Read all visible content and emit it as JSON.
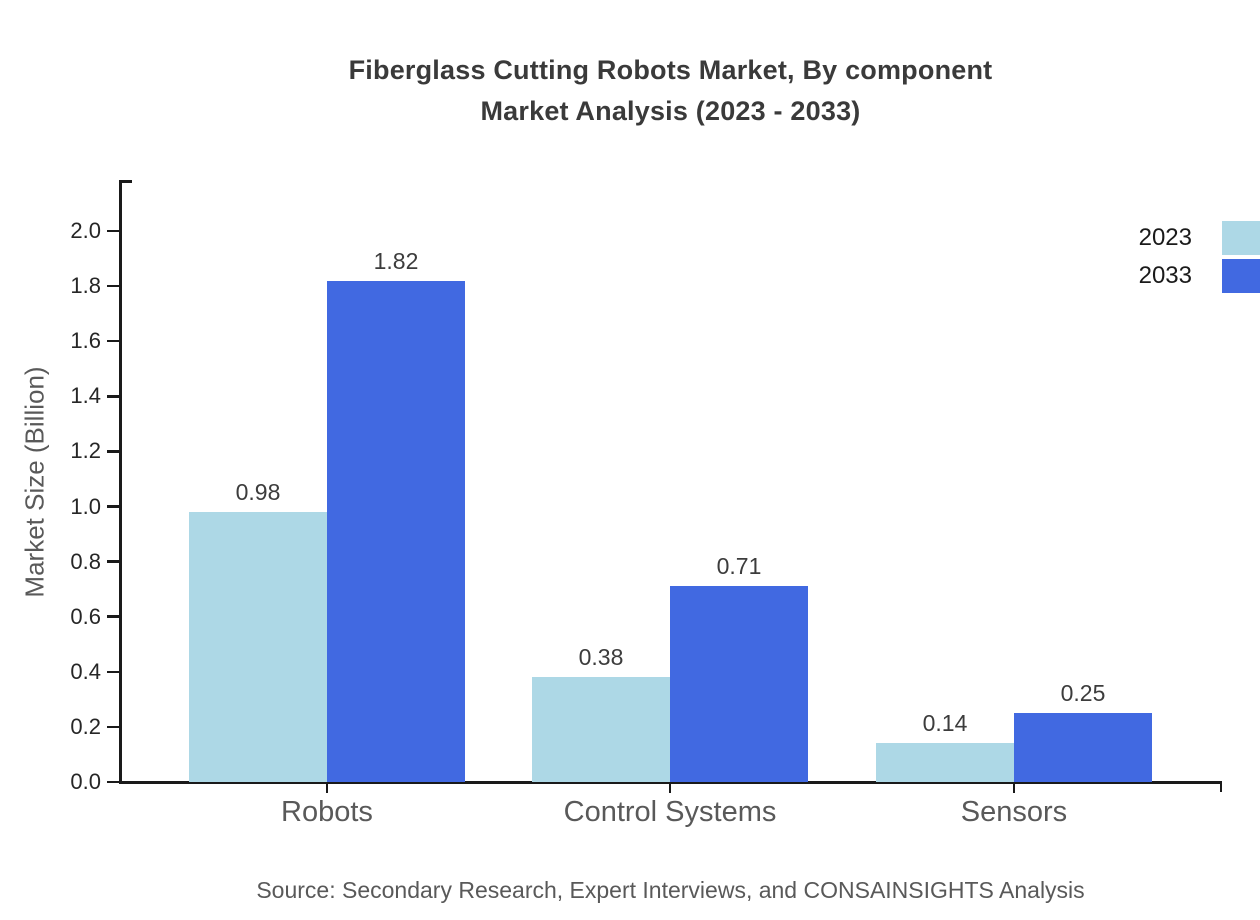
{
  "title": {
    "line1": "Fiberglass Cutting Robots Market, By component",
    "line2": "Market Analysis (2023 - 2033)"
  },
  "source": "Source: Secondary Research, Expert Interviews, and CONSAINSIGHTS Analysis",
  "chart_data": {
    "type": "bar",
    "title": "Fiberglass Cutting Robots Market, By component Market Analysis (2023 - 2033)",
    "categories": [
      "Robots",
      "Control Systems",
      "Sensors"
    ],
    "series": [
      {
        "name": "2023",
        "color": "#ADD8E6",
        "values": [
          0.98,
          0.38,
          0.14
        ]
      },
      {
        "name": "2033",
        "color": "#4169E1",
        "values": [
          1.82,
          0.71,
          0.25
        ]
      }
    ],
    "xlabel": "",
    "ylabel": "Market Size (Billion)",
    "ylim": [
      0,
      2.185
    ],
    "yticks": [
      0.0,
      0.2,
      0.4,
      0.6,
      0.8,
      1.0,
      1.2,
      1.4,
      1.6,
      1.8,
      2.0
    ],
    "grid": false,
    "legend_position": "top-right",
    "value_labels": true,
    "axis_color": "#1a1a1a",
    "tick_label_color": "#262626",
    "category_label_color": "#595959",
    "value_label_color": "#3c3c3c"
  }
}
